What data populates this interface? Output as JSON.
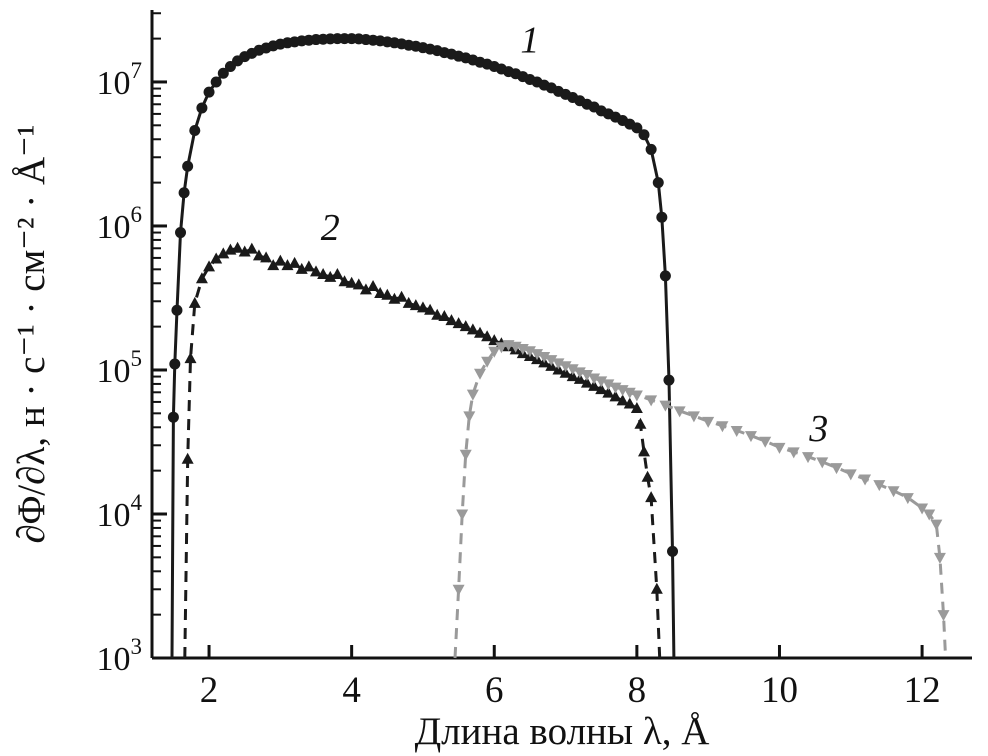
{
  "figure": {
    "background": "#ffffff",
    "axis_color": "#111111"
  },
  "chart_data": {
    "type": "scatter",
    "title": "",
    "xlabel": "Длина волны λ, Å",
    "ylabel": "∂Φ/∂λ, н · с⁻¹ · см⁻² · Å⁻¹",
    "grid": false,
    "legend_position": "inline-labels",
    "x_axis": {
      "min": 1.2,
      "max": 12.7,
      "ticks": [
        2,
        4,
        6,
        8,
        10,
        12
      ]
    },
    "y_axis": {
      "scale": "log",
      "min": 1000.0,
      "max": 31600000.0,
      "tick_exponents": [
        3,
        4,
        5,
        6,
        7
      ]
    },
    "series": [
      {
        "name": "1",
        "marker": "circle",
        "line": "solid",
        "color": "#1a1a1a",
        "label_pos": [
          6.5,
          16000000.0
        ],
        "points": [
          [
            1.48,
            1000.0
          ],
          [
            1.5,
            47000.0
          ],
          [
            1.52,
            110000.0
          ],
          [
            1.55,
            260000.0
          ],
          [
            1.6,
            900000.0
          ],
          [
            1.65,
            1700000.0
          ],
          [
            1.7,
            2600000.0
          ],
          [
            1.8,
            4600000.0
          ],
          [
            1.9,
            6600000.0
          ],
          [
            2.0,
            8500000.0
          ],
          [
            2.1,
            10000000.0
          ],
          [
            2.2,
            11500000.0
          ],
          [
            2.3,
            12800000.0
          ],
          [
            2.4,
            14000000.0
          ],
          [
            2.5,
            15000000.0
          ],
          [
            2.6,
            15800000.0
          ],
          [
            2.7,
            16600000.0
          ],
          [
            2.8,
            17200000.0
          ],
          [
            2.9,
            17800000.0
          ],
          [
            3.0,
            18300000.0
          ],
          [
            3.1,
            18700000.0
          ],
          [
            3.2,
            19000000.0
          ],
          [
            3.3,
            19300000.0
          ],
          [
            3.4,
            19500000.0
          ],
          [
            3.5,
            19700000.0
          ],
          [
            3.6,
            19800000.0
          ],
          [
            3.7,
            19900000.0
          ],
          [
            3.8,
            20000000.0
          ],
          [
            3.9,
            20000000.0
          ],
          [
            4.0,
            20000000.0
          ],
          [
            4.1,
            19900000.0
          ],
          [
            4.2,
            19700000.0
          ],
          [
            4.3,
            19500000.0
          ],
          [
            4.4,
            19300000.0
          ],
          [
            4.5,
            19000000.0
          ],
          [
            4.6,
            18700000.0
          ],
          [
            4.7,
            18400000.0
          ],
          [
            4.8,
            18000000.0
          ],
          [
            4.9,
            17700000.0
          ],
          [
            5.0,
            17300000.0
          ],
          [
            5.1,
            16900000.0
          ],
          [
            5.2,
            16500000.0
          ],
          [
            5.3,
            16000000.0
          ],
          [
            5.4,
            15600000.0
          ],
          [
            5.5,
            15100000.0
          ],
          [
            5.6,
            14700000.0
          ],
          [
            5.7,
            14200000.0
          ],
          [
            5.8,
            13700000.0
          ],
          [
            5.9,
            13300000.0
          ],
          [
            6.0,
            12800000.0
          ],
          [
            6.1,
            12300000.0
          ],
          [
            6.2,
            11800000.0
          ],
          [
            6.3,
            11400000.0
          ],
          [
            6.4,
            10900000.0
          ],
          [
            6.5,
            10400000.0
          ],
          [
            6.6,
            10000000.0
          ],
          [
            6.7,
            9500000.0
          ],
          [
            6.8,
            9100000.0
          ],
          [
            6.9,
            8600000.0
          ],
          [
            7.0,
            8200000.0
          ],
          [
            7.1,
            7800000.0
          ],
          [
            7.2,
            7400000.0
          ],
          [
            7.3,
            7000000.0
          ],
          [
            7.4,
            6700000.0
          ],
          [
            7.5,
            6300000.0
          ],
          [
            7.6,
            6000000.0
          ],
          [
            7.7,
            5700000.0
          ],
          [
            7.8,
            5400000.0
          ],
          [
            7.9,
            5100000.0
          ],
          [
            8.0,
            4800000.0
          ],
          [
            8.1,
            4300000.0
          ],
          [
            8.2,
            3400000.0
          ],
          [
            8.3,
            2000000.0
          ],
          [
            8.35,
            1150000.0
          ],
          [
            8.4,
            450000.0
          ],
          [
            8.45,
            85000.0
          ],
          [
            8.5,
            5500.0
          ],
          [
            8.52,
            1000.0
          ]
        ]
      },
      {
        "name": "2",
        "marker": "triangle-up",
        "line": "dashed",
        "color": "#1a1a1a",
        "label_pos": [
          3.7,
          800000.0
        ],
        "points": [
          [
            1.66,
            1000.0
          ],
          [
            1.7,
            24000.0
          ],
          [
            1.74,
            120000.0
          ],
          [
            1.8,
            290000.0
          ],
          [
            1.9,
            430000.0
          ],
          [
            2.0,
            520000.0
          ],
          [
            2.1,
            590000.0
          ],
          [
            2.2,
            640000.0
          ],
          [
            2.3,
            680000.0
          ],
          [
            2.4,
            700000.0
          ],
          [
            2.5,
            660000.0
          ],
          [
            2.6,
            690000.0
          ],
          [
            2.7,
            620000.0
          ],
          [
            2.8,
            600000.0
          ],
          [
            2.9,
            530000.0
          ],
          [
            3.0,
            570000.0
          ],
          [
            3.1,
            530000.0
          ],
          [
            3.2,
            550000.0
          ],
          [
            3.3,
            500000.0
          ],
          [
            3.4,
            520000.0
          ],
          [
            3.5,
            480000.0
          ],
          [
            3.6,
            460000.0
          ],
          [
            3.7,
            440000.0
          ],
          [
            3.8,
            460000.0
          ],
          [
            3.9,
            410000.0
          ],
          [
            4.0,
            400000.0
          ],
          [
            4.1,
            390000.0
          ],
          [
            4.2,
            360000.0
          ],
          [
            4.3,
            380000.0
          ],
          [
            4.4,
            340000.0
          ],
          [
            4.5,
            330000.0
          ],
          [
            4.6,
            310000.0
          ],
          [
            4.7,
            320000.0
          ],
          [
            4.8,
            290000.0
          ],
          [
            4.9,
            280000.0
          ],
          [
            5.0,
            270000.0
          ],
          [
            5.1,
            260000.0
          ],
          [
            5.2,
            240000.0
          ],
          [
            5.3,
            235000.0
          ],
          [
            5.4,
            220000.0
          ],
          [
            5.5,
            210000.0
          ],
          [
            5.6,
            200000.0
          ],
          [
            5.7,
            190000.0
          ],
          [
            5.8,
            180000.0
          ],
          [
            5.9,
            170000.0
          ],
          [
            6.0,
            160000.0
          ],
          [
            6.1,
            152000.0
          ],
          [
            6.2,
            145000.0
          ],
          [
            6.3,
            138000.0
          ],
          [
            6.4,
            130000.0
          ],
          [
            6.5,
            124000.0
          ],
          [
            6.6,
            118000.0
          ],
          [
            6.7,
            112000.0
          ],
          [
            6.8,
            106000.0
          ],
          [
            6.9,
            100000.0
          ],
          [
            7.0,
            95000.0
          ],
          [
            7.1,
            90000.0
          ],
          [
            7.2,
            86000.0
          ],
          [
            7.3,
            81000.0
          ],
          [
            7.4,
            77000.0
          ],
          [
            7.5,
            73000.0
          ],
          [
            7.6,
            69000.0
          ],
          [
            7.7,
            65000.0
          ],
          [
            7.8,
            61000.0
          ],
          [
            7.9,
            58000.0
          ],
          [
            8.0,
            54000.0
          ],
          [
            8.05,
            42000.0
          ],
          [
            8.1,
            27000.0
          ],
          [
            8.15,
            18000.0
          ],
          [
            8.2,
            13000.0
          ],
          [
            8.28,
            3000.0
          ],
          [
            8.32,
            1000.0
          ]
        ]
      },
      {
        "name": "3",
        "marker": "triangle-down",
        "line": "dashed",
        "color": "#9a9a9a",
        "label_pos": [
          10.55,
          32000.0
        ],
        "points": [
          [
            5.45,
            1000.0
          ],
          [
            5.5,
            3000.0
          ],
          [
            5.55,
            10000.0
          ],
          [
            5.6,
            26000.0
          ],
          [
            5.65,
            48000.0
          ],
          [
            5.7,
            68000.0
          ],
          [
            5.8,
            95000.0
          ],
          [
            5.9,
            115000.0
          ],
          [
            6.0,
            135000.0
          ],
          [
            6.1,
            145000.0
          ],
          [
            6.2,
            150000.0
          ],
          [
            6.3,
            146000.0
          ],
          [
            6.4,
            141000.0
          ],
          [
            6.5,
            136000.0
          ],
          [
            6.6,
            130000.0
          ],
          [
            6.7,
            124000.0
          ],
          [
            6.8,
            118000.0
          ],
          [
            6.9,
            112000.0
          ],
          [
            7.0,
            107000.0
          ],
          [
            7.1,
            102000.0
          ],
          [
            7.2,
            97000.0
          ],
          [
            7.3,
            93000.0
          ],
          [
            7.4,
            88000.0
          ],
          [
            7.5,
            84000.0
          ],
          [
            7.6,
            80000.0
          ],
          [
            7.7,
            76000.0
          ],
          [
            7.8,
            73000.0
          ],
          [
            7.9,
            70000.0
          ],
          [
            8.0,
            67000.0
          ],
          [
            8.2,
            62000.0
          ],
          [
            8.4,
            57000.0
          ],
          [
            8.6,
            52000.0
          ],
          [
            8.8,
            48000.0
          ],
          [
            9.0,
            44000.0
          ],
          [
            9.2,
            41000.0
          ],
          [
            9.4,
            38000.0
          ],
          [
            9.6,
            35000.0
          ],
          [
            9.8,
            32000.0
          ],
          [
            10.0,
            29000.0
          ],
          [
            10.2,
            27000.0
          ],
          [
            10.4,
            25000.0
          ],
          [
            10.6,
            23000.0
          ],
          [
            10.8,
            21000.0
          ],
          [
            11.0,
            19000.0
          ],
          [
            11.2,
            17500.0
          ],
          [
            11.4,
            16000.0
          ],
          [
            11.6,
            14500.0
          ],
          [
            11.8,
            13000.0
          ],
          [
            12.0,
            11000.0
          ],
          [
            12.1,
            10000.0
          ],
          [
            12.2,
            8500.0
          ],
          [
            12.25,
            5000.0
          ],
          [
            12.3,
            2000.0
          ],
          [
            12.33,
            1000.0
          ]
        ]
      }
    ]
  }
}
